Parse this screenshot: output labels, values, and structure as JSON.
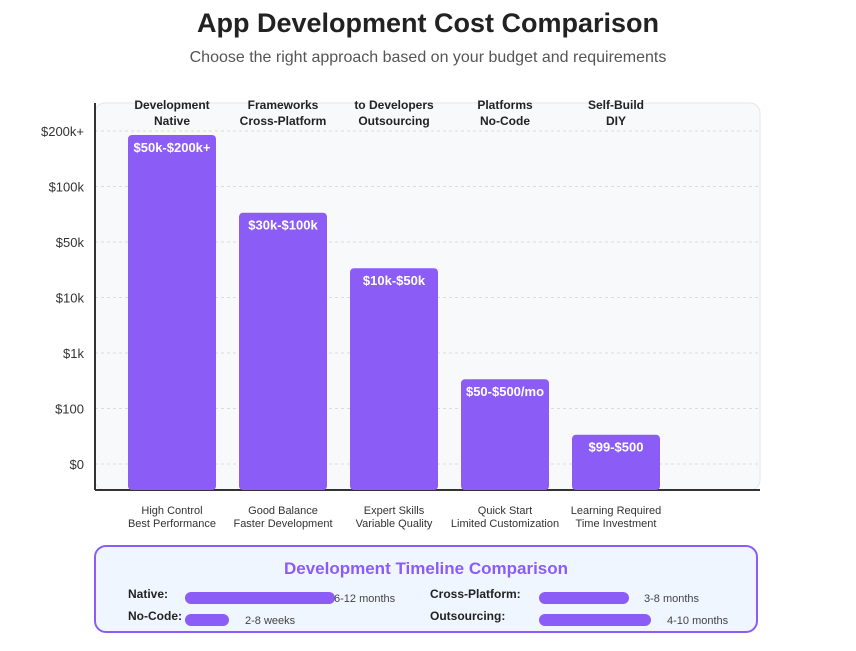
{
  "title": "App Development Cost Comparison",
  "subtitle": "Choose the right approach based on your budget and requirements",
  "chart_data": {
    "type": "bar",
    "title": "App Development Cost Comparison",
    "subtitle": "Choose the right approach based on your budget and requirements",
    "y_ticks": [
      "$200k+",
      "$100k",
      "$50k",
      "$10k",
      "$1k",
      "$100",
      "$0"
    ],
    "y_scale": "ordinal (logarithmic-style cost levels)",
    "grid": true,
    "categories": [
      {
        "header_line1": "Development",
        "header_line2": "Native",
        "label": "$50k-$200k+",
        "level": 6.0,
        "note_line1": "High Control",
        "note_line2": "Best Performance"
      },
      {
        "header_line1": "Frameworks",
        "header_line2": "Cross-Platform",
        "label": "$30k-$100k",
        "level": 4.6,
        "note_line1": "Good Balance",
        "note_line2": "Faster Development"
      },
      {
        "header_line1": "to Developers",
        "header_line2": "Outsourcing",
        "label": "$10k-$50k",
        "level": 3.6,
        "note_line1": "Expert Skills",
        "note_line2": "Variable Quality"
      },
      {
        "header_line1": "Platforms",
        "header_line2": "No-Code",
        "label": "$50-$500/mo",
        "level": 1.6,
        "note_line1": "Quick Start",
        "note_line2": "Limited Customization"
      },
      {
        "header_line1": "Self-Build",
        "header_line2": "DIY",
        "label": "$99-$500",
        "level": 0.6,
        "note_line1": "Learning Required",
        "note_line2": "Time Investment"
      }
    ],
    "bar_color": "#8b5cf6"
  },
  "timeline": {
    "title": "Development Timeline Comparison",
    "items": [
      {
        "label": "Native:",
        "duration": "6-12 months",
        "fraction": 1.0
      },
      {
        "label": "Cross-Platform:",
        "duration": "3-8 months",
        "fraction": 0.8
      },
      {
        "label": "No-Code:",
        "duration": "2-8 weeks",
        "fraction": 0.34
      },
      {
        "label": "Outsourcing:",
        "duration": "4-10 months",
        "fraction": 1.0
      }
    ]
  },
  "colors": {
    "accent": "#8b5cf6",
    "panel_bg": "#f0f6ff",
    "plot_bg": "#f8f9fa"
  }
}
